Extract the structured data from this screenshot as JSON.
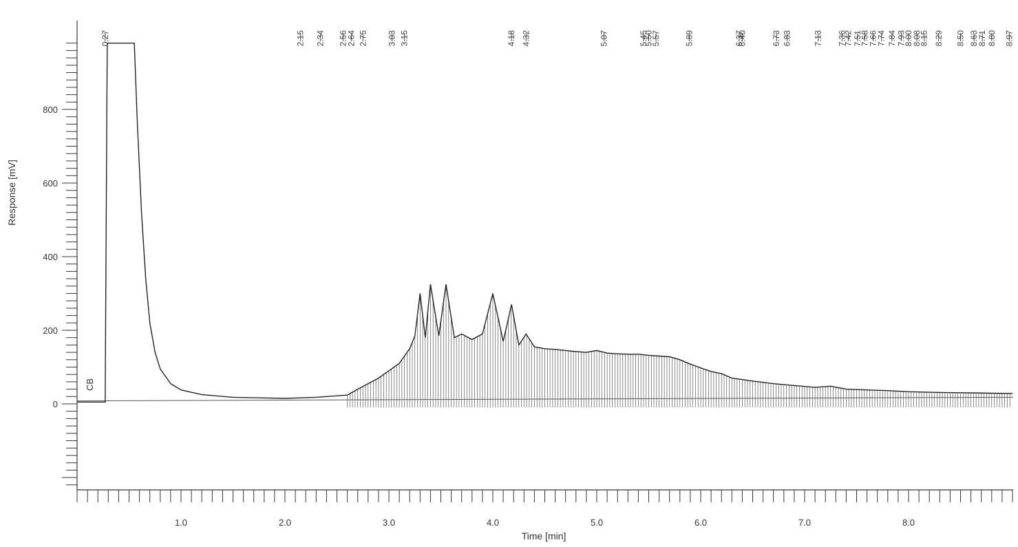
{
  "chart_data": {
    "type": "line",
    "title": "",
    "xlabel": "Time [min]",
    "ylabel": "Response [mV]",
    "xlim": [
      0,
      9.0
    ],
    "ylim": [
      -230,
      990
    ],
    "x_ticks": [
      1.0,
      2.0,
      3.0,
      4.0,
      5.0,
      6.0,
      7.0,
      8.0
    ],
    "x_tick_labels": [
      "1.0",
      "2.0",
      "3.0",
      "4.0",
      "5.0",
      "6.0",
      "7.0",
      "8.0"
    ],
    "y_ticks": [
      0,
      200,
      400,
      600,
      800
    ],
    "y_tick_labels": [
      "0",
      "200",
      "400",
      "600",
      "800"
    ],
    "grid": false,
    "baseline_marker": "CB",
    "series": [
      {
        "x": [
          0.0,
          0.27,
          0.29,
          0.32,
          0.55,
          0.58,
          0.62,
          0.66,
          0.7,
          0.75,
          0.8,
          0.9,
          1.0,
          1.2,
          1.5,
          2.0,
          2.3,
          2.6,
          2.7,
          2.8,
          2.9,
          3.0,
          3.1,
          3.2,
          3.25,
          3.3,
          3.35,
          3.4,
          3.48,
          3.55,
          3.63,
          3.7,
          3.8,
          3.9,
          4.0,
          4.1,
          4.18,
          4.25,
          4.32,
          4.4,
          4.5,
          4.6,
          4.7,
          4.8,
          4.9,
          5.0,
          5.1,
          5.2,
          5.3,
          5.4,
          5.5,
          5.6,
          5.7,
          5.8,
          5.9,
          6.0,
          6.1,
          6.2,
          6.3,
          6.5,
          6.7,
          6.9,
          7.1,
          7.25,
          7.4,
          7.6,
          7.8,
          8.0,
          8.3,
          8.6,
          9.0
        ],
        "y": [
          5,
          5,
          980,
          980,
          980,
          760,
          520,
          340,
          220,
          140,
          95,
          55,
          38,
          25,
          18,
          15,
          18,
          24,
          40,
          55,
          70,
          90,
          110,
          150,
          185,
          300,
          180,
          325,
          185,
          325,
          180,
          190,
          175,
          190,
          300,
          170,
          270,
          160,
          190,
          155,
          150,
          148,
          145,
          142,
          140,
          145,
          138,
          136,
          135,
          135,
          132,
          130,
          128,
          120,
          108,
          98,
          88,
          82,
          70,
          62,
          55,
          50,
          45,
          48,
          40,
          38,
          36,
          33,
          31,
          30,
          28
        ]
      }
    ],
    "peak_labels": [
      {
        "x": 0.27,
        "label": "0.27"
      },
      {
        "x": 2.15,
        "label": "2.15"
      },
      {
        "x": 2.34,
        "label": "2.34"
      },
      {
        "x": 2.56,
        "label": "2.56"
      },
      {
        "x": 2.64,
        "label": "2.64"
      },
      {
        "x": 2.75,
        "label": "2.75"
      },
      {
        "x": 3.03,
        "label": "3.03"
      },
      {
        "x": 3.15,
        "label": "3.15"
      },
      {
        "x": 4.18,
        "label": "4.18"
      },
      {
        "x": 4.32,
        "label": "4.32"
      },
      {
        "x": 5.07,
        "label": "5.07"
      },
      {
        "x": 5.45,
        "label": "5.45"
      },
      {
        "x": 5.5,
        "label": "5.50"
      },
      {
        "x": 5.57,
        "label": "5.57"
      },
      {
        "x": 5.89,
        "label": "5.89"
      },
      {
        "x": 6.37,
        "label": "6.37"
      },
      {
        "x": 6.4,
        "label": "6.40"
      },
      {
        "x": 6.73,
        "label": "6.73"
      },
      {
        "x": 6.83,
        "label": "6.83"
      },
      {
        "x": 7.13,
        "label": "7.13"
      },
      {
        "x": 7.36,
        "label": "7.36"
      },
      {
        "x": 7.42,
        "label": "7.42"
      },
      {
        "x": 7.51,
        "label": "7.51"
      },
      {
        "x": 7.58,
        "label": "7.58"
      },
      {
        "x": 7.66,
        "label": "7.66"
      },
      {
        "x": 7.74,
        "label": "7.74"
      },
      {
        "x": 7.84,
        "label": "7.84"
      },
      {
        "x": 7.93,
        "label": "7.93"
      },
      {
        "x": 8.0,
        "label": "8.00"
      },
      {
        "x": 8.08,
        "label": "8.08"
      },
      {
        "x": 8.15,
        "label": "8.15"
      },
      {
        "x": 8.29,
        "label": "8.29"
      },
      {
        "x": 8.5,
        "label": "8.50"
      },
      {
        "x": 8.63,
        "label": "8.63"
      },
      {
        "x": 8.71,
        "label": "8.71"
      },
      {
        "x": 8.8,
        "label": "8.80"
      },
      {
        "x": 8.97,
        "label": "8.97"
      }
    ],
    "line_color": "#222222"
  }
}
